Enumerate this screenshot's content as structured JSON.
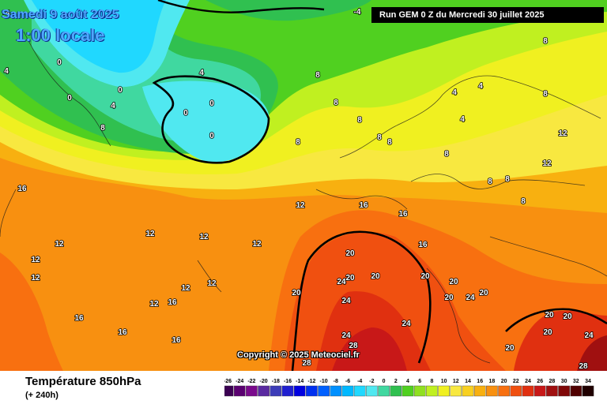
{
  "header": {
    "date": "Samedi 9 août 2025",
    "local_time": "1:00 locale",
    "run": "Run GEM 0 Z du Mercredi 30 juillet 2025"
  },
  "copyright": "Copyright © 2025 Meteociel.fr",
  "footer": {
    "title": "Température 850hPa",
    "forecast_hours": "(+ 240h)"
  },
  "legend": {
    "labels": [
      "-26",
      "-24",
      "-22",
      "-20",
      "-18",
      "-16",
      "-14",
      "-12",
      "-10",
      "-8",
      "-6",
      "-4",
      "-2",
      "0",
      "2",
      "4",
      "6",
      "8",
      "10",
      "12",
      "14",
      "16",
      "18",
      "20",
      "22",
      "24",
      "26",
      "28",
      "30",
      "32",
      "34"
    ],
    "colors": [
      "#3b0052",
      "#5a0070",
      "#7a0a8c",
      "#5a2aa0",
      "#3c3cb8",
      "#2020d0",
      "#0000e0",
      "#0030f0",
      "#0060ff",
      "#0090ff",
      "#00b8ff",
      "#20d8ff",
      "#50e8f0",
      "#40d8a0",
      "#30c050",
      "#50d020",
      "#90e020",
      "#c0f020",
      "#f0f020",
      "#f8e840",
      "#f8d020",
      "#f8b010",
      "#f89010",
      "#f87010",
      "#f05010",
      "#e03010",
      "#c81818",
      "#a01010",
      "#800808",
      "#500000",
      "#200000"
    ]
  },
  "isotherm_labels": [
    {
      "t": "-4"
    },
    {
      "t": "-4"
    },
    {
      "t": "0"
    },
    {
      "t": "0"
    },
    {
      "t": "0"
    },
    {
      "t": "0"
    },
    {
      "t": "0"
    },
    {
      "t": "0"
    },
    {
      "t": "4"
    },
    {
      "t": "4"
    },
    {
      "t": "4"
    },
    {
      "t": "4"
    },
    {
      "t": "4"
    },
    {
      "t": "4"
    },
    {
      "t": "8"
    },
    {
      "t": "8"
    },
    {
      "t": "8"
    },
    {
      "t": "8"
    },
    {
      "t": "8"
    },
    {
      "t": "8"
    },
    {
      "t": "8"
    },
    {
      "t": "8"
    },
    {
      "t": "8"
    },
    {
      "t": "8"
    },
    {
      "t": "8"
    },
    {
      "t": "8"
    },
    {
      "t": "8"
    },
    {
      "t": "12"
    },
    {
      "t": "12"
    },
    {
      "t": "12"
    },
    {
      "t": "12"
    },
    {
      "t": "12"
    },
    {
      "t": "12"
    },
    {
      "t": "12"
    },
    {
      "t": "12"
    },
    {
      "t": "12"
    },
    {
      "t": "12"
    },
    {
      "t": "12"
    },
    {
      "t": "12"
    },
    {
      "t": "16"
    },
    {
      "t": "16"
    },
    {
      "t": "16"
    },
    {
      "t": "16"
    },
    {
      "t": "16"
    },
    {
      "t": "16"
    },
    {
      "t": "16"
    },
    {
      "t": "16"
    },
    {
      "t": "20"
    },
    {
      "t": "20"
    },
    {
      "t": "20"
    },
    {
      "t": "20"
    },
    {
      "t": "20"
    },
    {
      "t": "20"
    },
    {
      "t": "20"
    },
    {
      "t": "20"
    },
    {
      "t": "20"
    },
    {
      "t": "20"
    },
    {
      "t": "20"
    },
    {
      "t": "20"
    },
    {
      "t": "24"
    },
    {
      "t": "24"
    },
    {
      "t": "24"
    },
    {
      "t": "24"
    },
    {
      "t": "24"
    },
    {
      "t": "24"
    },
    {
      "t": "28"
    },
    {
      "t": "28"
    },
    {
      "t": "28"
    }
  ]
}
